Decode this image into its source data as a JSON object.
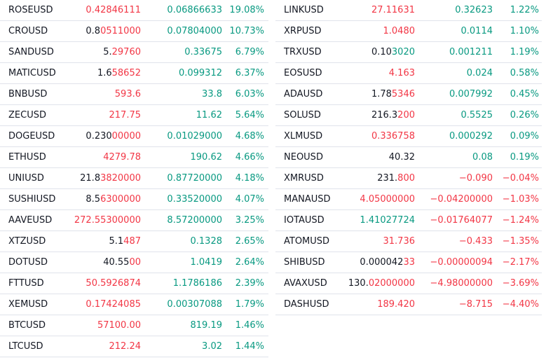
{
  "colors": {
    "up": "#089981",
    "down": "#f23645",
    "neutral": "#131722"
  },
  "left_column": [
    {
      "symbol": "ROSEUSD",
      "last_base": "",
      "last_tail": "0.42846111",
      "last_tail_color": "red",
      "change": "0.06866633",
      "change_pct": "19.08%",
      "dir": "up"
    },
    {
      "symbol": "CROUSD",
      "last_base": "0.8",
      "last_tail": "0511000",
      "last_tail_color": "red",
      "change": "0.07804000",
      "change_pct": "10.73%",
      "dir": "up"
    },
    {
      "symbol": "SANDUSD",
      "last_base": "5.",
      "last_tail": "29760",
      "last_tail_color": "red",
      "change": "0.33675",
      "change_pct": "6.79%",
      "dir": "up"
    },
    {
      "symbol": "MATICUSD",
      "last_base": "1.6",
      "last_tail": "58652",
      "last_tail_color": "red",
      "change": "0.099312",
      "change_pct": "6.37%",
      "dir": "up"
    },
    {
      "symbol": "BNBUSD",
      "last_base": "",
      "last_tail": "593.6",
      "last_tail_color": "red",
      "change": "33.8",
      "change_pct": "6.03%",
      "dir": "up"
    },
    {
      "symbol": "ZECUSD",
      "last_base": "",
      "last_tail": "217.75",
      "last_tail_color": "red",
      "change": "11.62",
      "change_pct": "5.64%",
      "dir": "up"
    },
    {
      "symbol": "DOGEUSD",
      "last_base": "0.230",
      "last_tail": "00000",
      "last_tail_color": "red",
      "change": "0.01029000",
      "change_pct": "4.68%",
      "dir": "up"
    },
    {
      "symbol": "ETHUSD",
      "last_base": "",
      "last_tail": "4279.78",
      "last_tail_color": "red",
      "change": "190.62",
      "change_pct": "4.66%",
      "dir": "up"
    },
    {
      "symbol": "UNIUSD",
      "last_base": "21.8",
      "last_tail": "3820000",
      "last_tail_color": "red",
      "change": "0.87720000",
      "change_pct": "4.18%",
      "dir": "up"
    },
    {
      "symbol": "SUSHIUSD",
      "last_base": "8.5",
      "last_tail": "6300000",
      "last_tail_color": "red",
      "change": "0.33520000",
      "change_pct": "4.07%",
      "dir": "up"
    },
    {
      "symbol": "AAVEUSD",
      "last_base": "",
      "last_tail": "272.55300000",
      "last_tail_color": "red",
      "change": "8.57200000",
      "change_pct": "3.25%",
      "dir": "up"
    },
    {
      "symbol": "XTZUSD",
      "last_base": "5.1",
      "last_tail": "487",
      "last_tail_color": "red",
      "change": "0.1328",
      "change_pct": "2.65%",
      "dir": "up"
    },
    {
      "symbol": "DOTUSD",
      "last_base": "40.55",
      "last_tail": "00",
      "last_tail_color": "red",
      "change": "1.0419",
      "change_pct": "2.64%",
      "dir": "up"
    },
    {
      "symbol": "FTTUSD",
      "last_base": "",
      "last_tail": "50.5926874",
      "last_tail_color": "red",
      "change": "1.1786186",
      "change_pct": "2.39%",
      "dir": "up"
    },
    {
      "symbol": "XEMUSD",
      "last_base": "",
      "last_tail": "0.17424085",
      "last_tail_color": "red",
      "change": "0.00307088",
      "change_pct": "1.79%",
      "dir": "up"
    },
    {
      "symbol": "BTCUSD",
      "last_base": "",
      "last_tail": "57100.00",
      "last_tail_color": "red",
      "change": "819.19",
      "change_pct": "1.46%",
      "dir": "up"
    },
    {
      "symbol": "LTCUSD",
      "last_base": "",
      "last_tail": "212.24",
      "last_tail_color": "red",
      "change": "3.02",
      "change_pct": "1.44%",
      "dir": "up"
    }
  ],
  "right_column": [
    {
      "symbol": "LINKUSD",
      "last_base": "",
      "last_tail": "27.11631",
      "last_tail_color": "red",
      "change": "0.32623",
      "change_pct": "1.22%",
      "dir": "up"
    },
    {
      "symbol": "XRPUSD",
      "last_base": "",
      "last_tail": "1.0480",
      "last_tail_color": "red",
      "change": "0.0114",
      "change_pct": "1.10%",
      "dir": "up"
    },
    {
      "symbol": "TRXUSD",
      "last_base": "0.10",
      "last_tail": "3020",
      "last_tail_color": "green",
      "change": "0.001211",
      "change_pct": "1.19%",
      "dir": "up"
    },
    {
      "symbol": "EOSUSD",
      "last_base": "",
      "last_tail": "4.163",
      "last_tail_color": "red",
      "change": "0.024",
      "change_pct": "0.58%",
      "dir": "up"
    },
    {
      "symbol": "ADAUSD",
      "last_base": "1.78",
      "last_tail": "5346",
      "last_tail_color": "red",
      "change": "0.007992",
      "change_pct": "0.45%",
      "dir": "up"
    },
    {
      "symbol": "SOLUSD",
      "last_base": "216.3",
      "last_tail": "200",
      "last_tail_color": "red",
      "change": "0.5525",
      "change_pct": "0.26%",
      "dir": "up"
    },
    {
      "symbol": "XLMUSD",
      "last_base": "",
      "last_tail": "0.336758",
      "last_tail_color": "red",
      "change": "0.000292",
      "change_pct": "0.09%",
      "dir": "up"
    },
    {
      "symbol": "NEOUSD",
      "last_base": "40.32",
      "last_tail": "",
      "last_tail_color": "red",
      "change": "0.08",
      "change_pct": "0.19%",
      "dir": "up"
    },
    {
      "symbol": "XMRUSD",
      "last_base": "231.",
      "last_tail": "800",
      "last_tail_color": "red",
      "change": "−0.090",
      "change_pct": "−0.04%",
      "dir": "down"
    },
    {
      "symbol": "MANAUSD",
      "last_base": "",
      "last_tail": "4.05000000",
      "last_tail_color": "red",
      "change": "−0.04200000",
      "change_pct": "−1.03%",
      "dir": "down"
    },
    {
      "symbol": "IOTAUSD",
      "last_base": "",
      "last_tail": "1.41027724",
      "last_tail_color": "green",
      "change": "−0.01764077",
      "change_pct": "−1.24%",
      "dir": "down"
    },
    {
      "symbol": "ATOMUSD",
      "last_base": "",
      "last_tail": "31.736",
      "last_tail_color": "red",
      "change": "−0.433",
      "change_pct": "−1.35%",
      "dir": "down"
    },
    {
      "symbol": "SHIBUSD",
      "last_base": "0.000042",
      "last_tail": "33",
      "last_tail_color": "red",
      "change": "−0.00000094",
      "change_pct": "−2.17%",
      "dir": "down"
    },
    {
      "symbol": "AVAXUSD",
      "last_base": "130.",
      "last_tail": "02000000",
      "last_tail_color": "red",
      "change": "−4.98000000",
      "change_pct": "−3.69%",
      "dir": "down"
    },
    {
      "symbol": "DASHUSD",
      "last_base": "",
      "last_tail": "189.420",
      "last_tail_color": "red",
      "change": "−8.715",
      "change_pct": "−4.40%",
      "dir": "down"
    }
  ]
}
